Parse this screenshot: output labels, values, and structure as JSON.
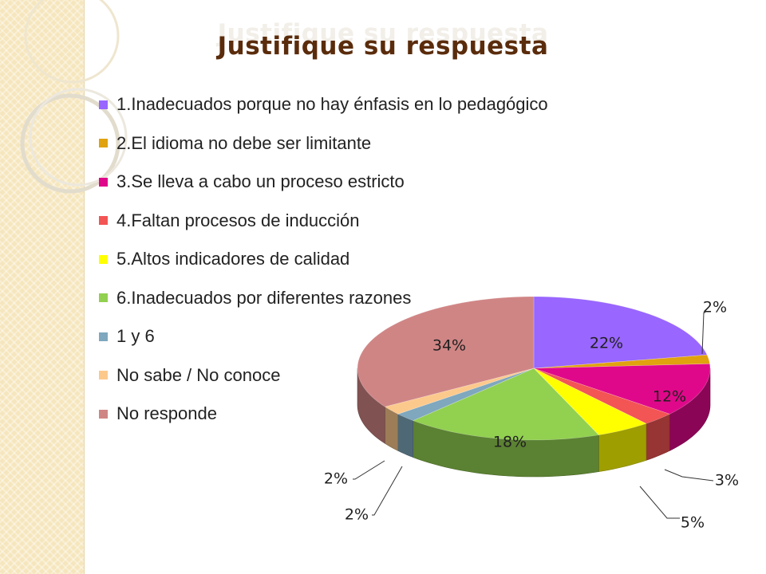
{
  "slide": {
    "title": "Justifique su respuesta"
  },
  "chart_data": {
    "type": "pie",
    "style": "3d",
    "title": "Justifique su respuesta",
    "legend_position": "left",
    "categories": [
      "1.Inadecuados porque no hay énfasis en lo pedagógico",
      "2.El idioma no debe ser limitante",
      "3.Se lleva a cabo un proceso estricto",
      "4.Faltan procesos de inducción",
      "5.Altos indicadores de calidad",
      "6.Inadecuados por diferentes razones",
      "1 y 6",
      "No sabe / No conoce",
      "No responde"
    ],
    "values": [
      22,
      2,
      12,
      3,
      5,
      18,
      2,
      2,
      34
    ],
    "labels": [
      "22%",
      "2%",
      "12%",
      "3%",
      "5%",
      "18%",
      "2%",
      "2%",
      "34%"
    ],
    "colors": [
      "#9966ff",
      "#e0a20e",
      "#e0088a",
      "#f35454",
      "#ffff00",
      "#92d050",
      "#7fa7be",
      "#fcc98c",
      "#d08585"
    ]
  }
}
